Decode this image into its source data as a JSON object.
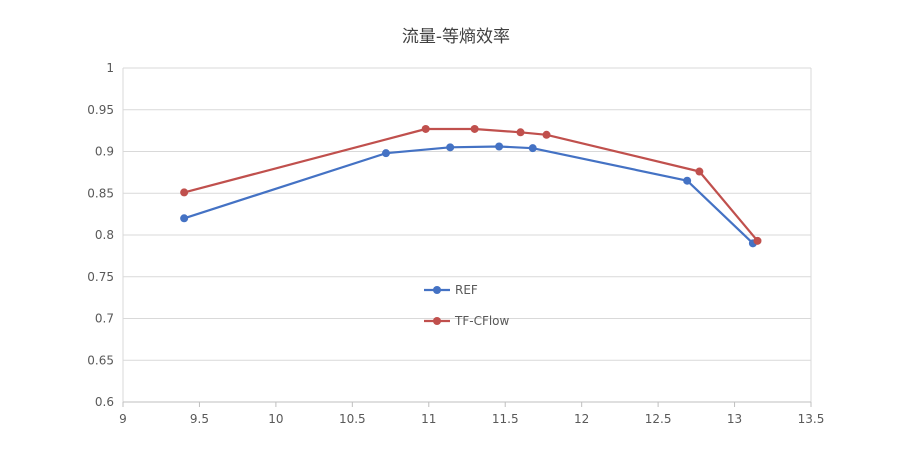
{
  "chart_data": {
    "type": "line",
    "title": "流量-等熵效率",
    "xlabel": "",
    "ylabel": "",
    "xlim": [
      9,
      13.5
    ],
    "ylim": [
      0.6,
      1
    ],
    "x_ticks": [
      "9",
      "9.5",
      "10",
      "10.5",
      "11",
      "11.5",
      "12",
      "12.5",
      "13",
      "13.5"
    ],
    "y_ticks": [
      "0.6",
      "0.65",
      "0.7",
      "0.75",
      "0.8",
      "0.85",
      "0.9",
      "0.95",
      "1"
    ],
    "grid": "horizontal",
    "legend_position": "center",
    "series": [
      {
        "name": "REF",
        "color": "#4472C4",
        "points": [
          {
            "x": 9.4,
            "y": 0.82
          },
          {
            "x": 10.72,
            "y": 0.898
          },
          {
            "x": 11.14,
            "y": 0.905
          },
          {
            "x": 11.46,
            "y": 0.906
          },
          {
            "x": 11.68,
            "y": 0.904
          },
          {
            "x": 12.69,
            "y": 0.865
          },
          {
            "x": 13.12,
            "y": 0.79
          }
        ]
      },
      {
        "name": "TF-CFlow",
        "color": "#C0504D",
        "points": [
          {
            "x": 9.4,
            "y": 0.851
          },
          {
            "x": 10.98,
            "y": 0.927
          },
          {
            "x": 11.3,
            "y": 0.927
          },
          {
            "x": 11.6,
            "y": 0.923
          },
          {
            "x": 11.77,
            "y": 0.92
          },
          {
            "x": 12.77,
            "y": 0.876
          },
          {
            "x": 13.15,
            "y": 0.793
          }
        ]
      }
    ]
  }
}
